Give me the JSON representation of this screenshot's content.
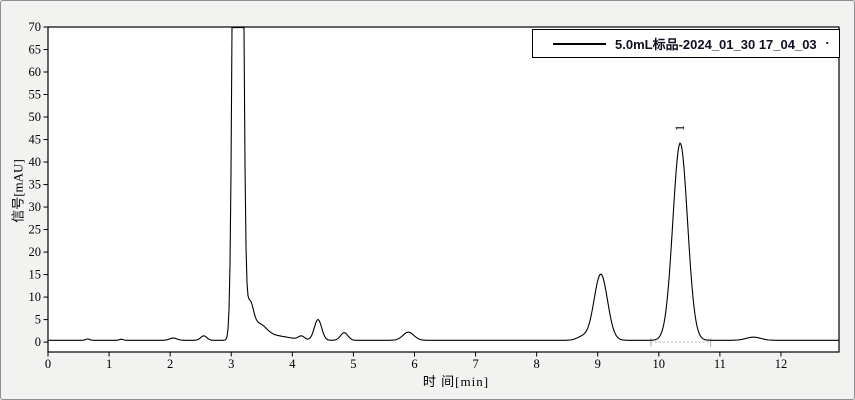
{
  "window": {
    "background": "#f2f2f1",
    "frame_color": "#8f8f8f",
    "plot_background": "#ffffff"
  },
  "chart_data": {
    "type": "line",
    "title": "",
    "xlabel": "时 间[min]",
    "ylabel": "信号[mAU]",
    "xlim": [
      0,
      12.95
    ],
    "ylim": [
      -2.2,
      70
    ],
    "x_ticks": [
      0,
      1,
      2,
      3,
      4,
      5,
      6,
      7,
      8,
      9,
      10,
      11,
      12
    ],
    "y_ticks": [
      0,
      5,
      10,
      15,
      20,
      25,
      30,
      35,
      40,
      45,
      50,
      55,
      60,
      65,
      70
    ],
    "grid": false,
    "line_color": "#000000",
    "baseline_mau": 0.4,
    "legend": {
      "label": "5.0mL标品-2024_01_30 17_04_03",
      "suffix_dot": ".",
      "position": "top-right",
      "line_color": "#000000",
      "text_color": "#101022"
    },
    "peaks": [
      {
        "time": 0.65,
        "height": 0.3,
        "sigma": 0.03
      },
      {
        "time": 1.2,
        "height": 0.25,
        "sigma": 0.03
      },
      {
        "time": 2.05,
        "height": 0.5,
        "sigma": 0.06
      },
      {
        "time": 2.55,
        "height": 1.0,
        "sigma": 0.05
      },
      {
        "time": 3.11,
        "height": 500.0,
        "sigma": 0.05,
        "clipped_at_ymax": true
      },
      {
        "time": 3.3,
        "height": 7.0,
        "sigma": 0.06
      },
      {
        "time": 3.45,
        "height": 3.0,
        "sigma": 0.12
      },
      {
        "time": 3.7,
        "height": 1.0,
        "sigma": 0.25
      },
      {
        "time": 4.15,
        "height": 0.8,
        "sigma": 0.05
      },
      {
        "time": 4.42,
        "height": 4.6,
        "sigma": 0.06
      },
      {
        "time": 4.85,
        "height": 1.7,
        "sigma": 0.06
      },
      {
        "time": 5.9,
        "height": 1.8,
        "sigma": 0.09
      },
      {
        "time": 8.75,
        "height": 0.8,
        "sigma": 0.09
      },
      {
        "time": 9.05,
        "height": 14.7,
        "sigma": 0.11
      },
      {
        "time": 10.35,
        "height": 43.8,
        "sigma": 0.12,
        "label": "1"
      },
      {
        "time": 11.55,
        "height": 0.7,
        "sigma": 0.12
      }
    ],
    "integration": {
      "start": 9.87,
      "end": 10.85,
      "style": "dotted",
      "color": "#b3b3b3"
    }
  }
}
